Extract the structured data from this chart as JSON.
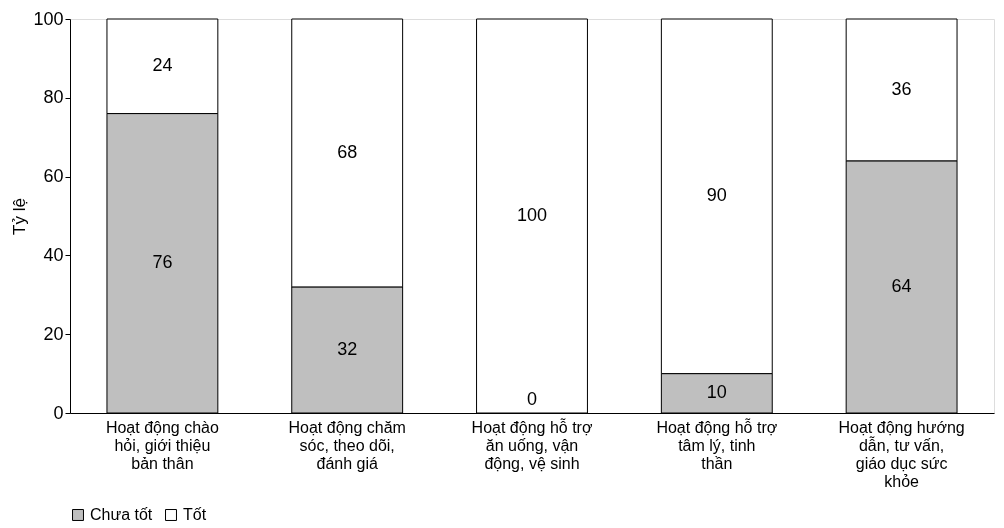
{
  "chart_data": {
    "type": "bar",
    "stacked": true,
    "ylabel": "Tỷ lệ",
    "categories": [
      "Hoạt động chào hỏi, giới thiệu bản thân",
      "Hoạt động chăm sóc, theo dõi, đánh giá",
      "Hoạt động hỗ trợ ăn uống, vận động, vệ sinh",
      "Hoạt động hỗ trợ tâm lý, tinh thần",
      "Hoạt động hướng dẫn, tư vấn, giáo dục sức khỏe"
    ],
    "series": [
      {
        "name": "Chưa tốt",
        "color": "#bfbfbf",
        "values": [
          76,
          32,
          0,
          10,
          64
        ],
        "value_labels": [
          "76",
          "32",
          null,
          "10",
          "64"
        ]
      },
      {
        "name": "Tốt",
        "color": "#ffffff",
        "values": [
          24,
          68,
          100,
          90,
          36
        ],
        "value_labels": [
          "24",
          "68",
          "100",
          "90",
          "36"
        ]
      }
    ],
    "annotations": [
      {
        "text": "0",
        "x": "Hoạt động hỗ trợ ăn uống, vận động, vệ sinh",
        "y": 0
      }
    ],
    "ylim": [
      0,
      100
    ],
    "yticks": [
      0,
      20,
      40,
      60,
      80,
      100
    ],
    "grid": false,
    "legend": "bottom"
  }
}
